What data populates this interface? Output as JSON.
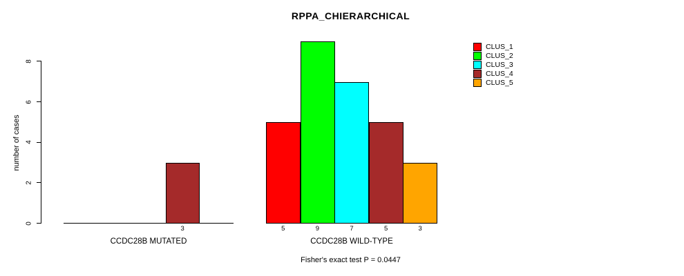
{
  "chart_data": {
    "type": "bar",
    "title": "RPPA_CHIERARCHICAL",
    "ylabel": "number of cases",
    "ylim": [
      0,
      9
    ],
    "yticks": [
      0,
      2,
      4,
      6,
      8
    ],
    "categories": [
      "CCDC28B MUTATED",
      "CCDC28B WILD-TYPE"
    ],
    "series": [
      {
        "name": "CLUS_1",
        "color": "#FF0000",
        "values": [
          0,
          5
        ]
      },
      {
        "name": "CLUS_2",
        "color": "#00FF00",
        "values": [
          0,
          9
        ]
      },
      {
        "name": "CLUS_3",
        "color": "#00FFFF",
        "values": [
          0,
          7
        ]
      },
      {
        "name": "CLUS_4",
        "color": "#A52A2A",
        "values": [
          3,
          5
        ]
      },
      {
        "name": "CLUS_5",
        "color": "#FFA500",
        "values": [
          0,
          3
        ]
      }
    ],
    "bar_value_labels": [
      [
        "",
        "",
        "",
        "3",
        ""
      ],
      [
        "5",
        "9",
        "7",
        "5",
        "3"
      ]
    ],
    "legend_position": "top-right",
    "grid": false,
    "annotation": "Fisher's exact test P = 0.0447"
  }
}
